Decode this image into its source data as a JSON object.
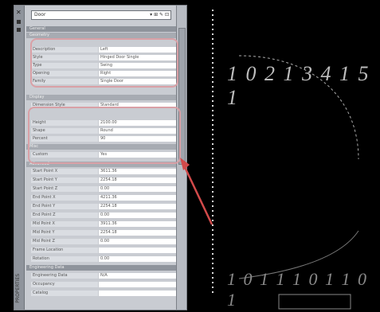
{
  "dropdown": {
    "value": "Door",
    "icons": "▾ ⊞ ✎ ⊡"
  },
  "sections": {
    "general": "General",
    "geometry": "Geometry",
    "display": "Display",
    "misc": "Misc",
    "advanced": "Advanced",
    "engineering": "Engineering Data"
  },
  "panel_vertical_label": "PROPERTIES",
  "rows_a": [
    {
      "k": "Description",
      "v": "Left"
    },
    {
      "k": "Style",
      "v": "Hinged Door Single"
    },
    {
      "k": "Type",
      "v": "Swing"
    },
    {
      "k": "Opening",
      "v": "Right"
    },
    {
      "k": "Family",
      "v": "Single Door"
    }
  ],
  "rows_b": [
    {
      "k": "Dimension Style",
      "v": "Standard"
    }
  ],
  "rows_c": [
    {
      "k": "Height",
      "v": "2100.00"
    },
    {
      "k": "Shape",
      "v": "Round"
    },
    {
      "k": "Percent",
      "v": "90"
    }
  ],
  "rows_d": [
    {
      "k": "Custom",
      "v": "Yes"
    }
  ],
  "rows_e": [
    {
      "k": "Start Point X",
      "v": "3611.36"
    },
    {
      "k": "Start Point Y",
      "v": "2254.18"
    },
    {
      "k": "Start Point Z",
      "v": "0.00"
    },
    {
      "k": "End Point X",
      "v": "4211.36"
    },
    {
      "k": "End Point Y",
      "v": "2254.18"
    },
    {
      "k": "End Point Z",
      "v": "0.00"
    },
    {
      "k": "Mid Point X",
      "v": "3911.36"
    },
    {
      "k": "Mid Point Y",
      "v": "2254.18"
    },
    {
      "k": "Mid Point Z",
      "v": "0.00"
    },
    {
      "k": "Frame Location",
      "v": ""
    },
    {
      "k": "Rotation",
      "v": "0.00"
    }
  ],
  "rows_f": [
    {
      "k": "Engineering Data",
      "v": "N/A"
    },
    {
      "k": "Occupancy",
      "v": ""
    },
    {
      "k": "Catalog",
      "v": ""
    }
  ],
  "cad_text_top": "1 0 2 1 3 4 1 5 1",
  "cad_text_bottom": "1 0 1 1 1 0 1 1 0 1"
}
